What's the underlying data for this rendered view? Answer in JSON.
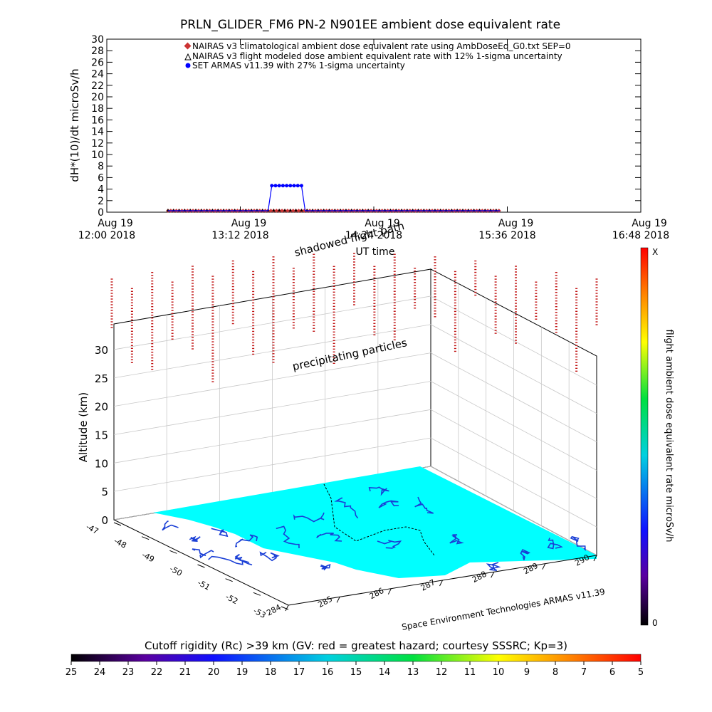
{
  "title": "PRLN_GLIDER_FM6 PN-2 N901EE ambient dose equivalent rate",
  "chart_data": [
    {
      "type": "line",
      "ylabel": "dH*(10)/dt microSv/h",
      "xlabel": "UT time",
      "ylim": [
        0,
        30
      ],
      "yticks": [
        0,
        2,
        4,
        6,
        8,
        10,
        12,
        14,
        16,
        18,
        20,
        22,
        24,
        26,
        28,
        30
      ],
      "xlim_minutes_after_1200": [
        0,
        288
      ],
      "xticks": [
        {
          "minute": 0,
          "date": "Aug 19",
          "time": "12:00 2018"
        },
        {
          "minute": 72,
          "date": "Aug 19",
          "time": "13:12 2018"
        },
        {
          "minute": 144,
          "date": "Aug 19",
          "time": "14:24 2018"
        },
        {
          "minute": 216,
          "date": "Aug 19",
          "time": "15:36 2018"
        },
        {
          "minute": 288,
          "date": "Aug 19",
          "time": "16:48 2018"
        }
      ],
      "legend": [
        {
          "label": "NAIRAS v3 climatological ambient dose equivalent rate using AmbDoseEq_G0.txt SEP=0",
          "color": "#cc3333",
          "marker": "diamond"
        },
        {
          "label": "NAIRAS v3 flight modeled dose ambient equivalent rate with 12% 1-sigma uncertainty",
          "color": "#000000",
          "marker": "triangle"
        },
        {
          "label": "SET ARMAS v11.39 with 27% 1-sigma uncertainty",
          "color": "#0000ff",
          "marker": "circle"
        }
      ],
      "legend_placement": "top-center",
      "series": [
        {
          "name": "NAIRAS v3 climatological ambient dose equivalent rate using AmbDoseEq_G0.txt SEP=0",
          "x_range_minutes": [
            33,
            212
          ],
          "y": 0
        },
        {
          "name": "NAIRAS v3 flight modeled dose ambient equivalent rate with 12% 1-sigma uncertainty",
          "x_range_minutes": [
            33,
            212
          ],
          "y": 0
        },
        {
          "name": "SET ARMAS v11.39 with 27% 1-sigma uncertainty",
          "points": [
            [
              33,
              0
            ],
            [
              87,
              0
            ],
            [
              89,
              4.6
            ],
            [
              91,
              4.6
            ],
            [
              93,
              4.6
            ],
            [
              95,
              4.6
            ],
            [
              97,
              4.6
            ],
            [
              99,
              4.6
            ],
            [
              101,
              4.6
            ],
            [
              103,
              4.6
            ],
            [
              105,
              4.6
            ],
            [
              107,
              0
            ],
            [
              212,
              0
            ]
          ]
        }
      ]
    },
    {
      "type": "3d-surface",
      "zlabel": "Altitude (km)",
      "zticks": [
        0,
        5,
        10,
        15,
        20,
        25,
        30
      ],
      "latitude_ticks": [
        "-47",
        "-48",
        "-49",
        "-50",
        "-51",
        "-52",
        "-53"
      ],
      "longitude_ticks": [
        "284",
        "285",
        "286",
        "287",
        "288",
        "289",
        "290"
      ],
      "annotations": [
        "shadowed flight path",
        "precipitating particles"
      ],
      "credit": "Space Environment Technologies ARMAS v11.39",
      "colorbar_right": {
        "label": "flight ambient dose equivalent rate microSv/h",
        "max_label": "X",
        "min_label": "0"
      },
      "colorbar_bottom": {
        "label": "Cutoff rigidity (Rc) >39 km (GV: red = greatest hazard; courtesy SSSRC; Kp=3)",
        "ticks": [
          "25",
          "24",
          "23",
          "22",
          "21",
          "20",
          "19",
          "18",
          "17",
          "16",
          "15",
          "14",
          "13",
          "12",
          "11",
          "10",
          "9",
          "8",
          "7",
          "6",
          "5"
        ]
      },
      "colors": {
        "surface": "#00ffff",
        "coast": "#1a3fd6",
        "particles": "#c01010"
      }
    }
  ]
}
